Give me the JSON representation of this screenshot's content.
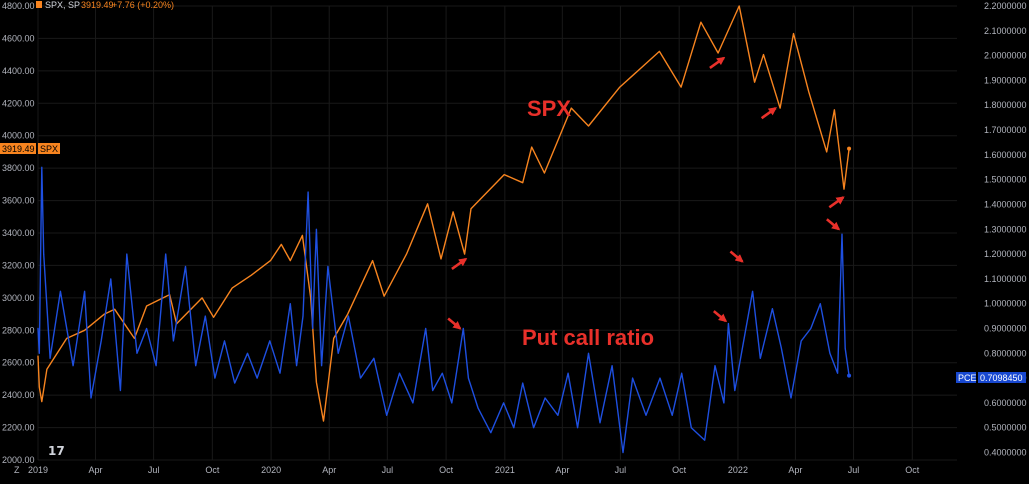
{
  "header": {
    "symbol": "SPX, SP",
    "price": "3919.49",
    "change": "+7.76 (+0.20%)"
  },
  "left_tag": {
    "price": "3919.49",
    "symbol": "SPX"
  },
  "right_tag": {
    "symbol": "PCE",
    "value": "0.7098450"
  },
  "corner_label": "Z",
  "logo_text": "17",
  "colors": {
    "background": "#000000",
    "spx": "#f7841f",
    "pcr": "#1e4fe0",
    "annotation": "#e8302a",
    "axis_text": "#b2b5be",
    "grid": "#191919",
    "tag_spx_bg": "#f7841f",
    "tag_pce_bg": "#1848d0"
  },
  "chart_data": {
    "type": "line",
    "x_axis": {
      "ticks": [
        "2019",
        "Apr",
        "Jul",
        "Oct",
        "2020",
        "Apr",
        "Jul",
        "Oct",
        "2021",
        "Apr",
        "Jul",
        "Oct",
        "2022",
        "Apr",
        "Jul",
        "Oct"
      ],
      "range": [
        "2019-01-01",
        "2022-12-10"
      ]
    },
    "y_axis_left": {
      "series": "SPX",
      "range": [
        2000,
        4800
      ],
      "ticks": [
        "2000.00",
        "2200.00",
        "2400.00",
        "2600.00",
        "2800.00",
        "3000.00",
        "3200.00",
        "3400.00",
        "3600.00",
        "3800.00",
        "4000.00",
        "4200.00",
        "4400.00",
        "4600.00",
        "4800.00"
      ]
    },
    "y_axis_right": {
      "series": "PCE",
      "range": [
        0.37,
        2.2
      ],
      "ticks": [
        "0.4000000",
        "0.5000000",
        "0.6000000",
        "0.7000000",
        "0.8000000",
        "0.9000000",
        "1.0000000",
        "1.1000000",
        "1.2000000",
        "1.3000000",
        "1.4000000",
        "1.5000000",
        "1.6000000",
        "1.7000000",
        "1.8000000",
        "1.9000000",
        "2.0000000",
        "2.1000000",
        "2.2000000"
      ]
    },
    "series": [
      {
        "name": "SPX",
        "axis": "left",
        "color": "#f7841f",
        "points": [
          [
            "2019-01-01",
            2640
          ],
          [
            "2019-01-03",
            2450
          ],
          [
            "2019-01-07",
            2360
          ],
          [
            "2019-01-15",
            2560
          ],
          [
            "2019-02-15",
            2750
          ],
          [
            "2019-03-15",
            2800
          ],
          [
            "2019-04-15",
            2900
          ],
          [
            "2019-05-01",
            2930
          ],
          [
            "2019-06-01",
            2750
          ],
          [
            "2019-06-20",
            2950
          ],
          [
            "2019-07-26",
            3020
          ],
          [
            "2019-08-06",
            2840
          ],
          [
            "2019-09-15",
            3000
          ],
          [
            "2019-10-03",
            2880
          ],
          [
            "2019-11-01",
            3060
          ],
          [
            "2019-12-01",
            3140
          ],
          [
            "2019-12-31",
            3230
          ],
          [
            "2020-01-17",
            3330
          ],
          [
            "2020-01-31",
            3230
          ],
          [
            "2020-02-19",
            3385
          ],
          [
            "2020-03-03",
            3000
          ],
          [
            "2020-03-12",
            2480
          ],
          [
            "2020-03-23",
            2240
          ],
          [
            "2020-04-08",
            2750
          ],
          [
            "2020-04-30",
            2900
          ],
          [
            "2020-06-08",
            3230
          ],
          [
            "2020-06-26",
            3010
          ],
          [
            "2020-07-31",
            3270
          ],
          [
            "2020-09-02",
            3580
          ],
          [
            "2020-09-23",
            3240
          ],
          [
            "2020-10-12",
            3530
          ],
          [
            "2020-10-30",
            3270
          ],
          [
            "2020-11-09",
            3550
          ],
          [
            "2020-12-31",
            3760
          ],
          [
            "2021-01-29",
            3710
          ],
          [
            "2021-02-12",
            3930
          ],
          [
            "2021-03-04",
            3770
          ],
          [
            "2021-04-15",
            4170
          ],
          [
            "2021-05-12",
            4060
          ],
          [
            "2021-06-30",
            4300
          ],
          [
            "2021-08-31",
            4520
          ],
          [
            "2021-10-04",
            4300
          ],
          [
            "2021-11-04",
            4700
          ],
          [
            "2021-12-01",
            4510
          ],
          [
            "2022-01-03",
            4800
          ],
          [
            "2022-01-27",
            4330
          ],
          [
            "2022-02-10",
            4500
          ],
          [
            "2022-03-08",
            4170
          ],
          [
            "2022-03-29",
            4630
          ],
          [
            "2022-04-22",
            4270
          ],
          [
            "2022-05-20",
            3900
          ],
          [
            "2022-06-01",
            4160
          ],
          [
            "2022-06-16",
            3670
          ],
          [
            "2022-06-24",
            3920
          ]
        ]
      },
      {
        "name": "PCE",
        "axis": "right",
        "color": "#1e4fe0",
        "points": [
          [
            "2019-01-01",
            0.9
          ],
          [
            "2019-01-03",
            0.8
          ],
          [
            "2019-01-07",
            1.55
          ],
          [
            "2019-01-10",
            1.2
          ],
          [
            "2019-01-20",
            0.78
          ],
          [
            "2019-02-05",
            1.05
          ],
          [
            "2019-02-25",
            0.75
          ],
          [
            "2019-03-15",
            1.05
          ],
          [
            "2019-03-25",
            0.62
          ],
          [
            "2019-04-10",
            0.85
          ],
          [
            "2019-04-25",
            1.1
          ],
          [
            "2019-05-10",
            0.65
          ],
          [
            "2019-05-20",
            1.2
          ],
          [
            "2019-06-05",
            0.8
          ],
          [
            "2019-06-20",
            0.9
          ],
          [
            "2019-07-05",
            0.75
          ],
          [
            "2019-07-20",
            1.2
          ],
          [
            "2019-08-01",
            0.85
          ],
          [
            "2019-08-20",
            1.15
          ],
          [
            "2019-09-05",
            0.75
          ],
          [
            "2019-09-20",
            0.95
          ],
          [
            "2019-10-05",
            0.7
          ],
          [
            "2019-10-20",
            0.85
          ],
          [
            "2019-11-05",
            0.68
          ],
          [
            "2019-11-25",
            0.8
          ],
          [
            "2019-12-10",
            0.7
          ],
          [
            "2019-12-30",
            0.85
          ],
          [
            "2020-01-15",
            0.72
          ],
          [
            "2020-01-31",
            1.0
          ],
          [
            "2020-02-10",
            0.75
          ],
          [
            "2020-02-20",
            0.95
          ],
          [
            "2020-02-28",
            1.45
          ],
          [
            "2020-03-06",
            0.9
          ],
          [
            "2020-03-12",
            1.3
          ],
          [
            "2020-03-20",
            0.75
          ],
          [
            "2020-03-30",
            1.15
          ],
          [
            "2020-04-15",
            0.8
          ],
          [
            "2020-05-01",
            0.95
          ],
          [
            "2020-05-20",
            0.7
          ],
          [
            "2020-06-10",
            0.78
          ],
          [
            "2020-06-30",
            0.55
          ],
          [
            "2020-07-20",
            0.72
          ],
          [
            "2020-08-10",
            0.6
          ],
          [
            "2020-08-30",
            0.9
          ],
          [
            "2020-09-10",
            0.65
          ],
          [
            "2020-09-25",
            0.72
          ],
          [
            "2020-10-10",
            0.6
          ],
          [
            "2020-10-28",
            0.9
          ],
          [
            "2020-11-05",
            0.7
          ],
          [
            "2020-11-20",
            0.58
          ],
          [
            "2020-12-10",
            0.48
          ],
          [
            "2020-12-30",
            0.6
          ],
          [
            "2021-01-15",
            0.5
          ],
          [
            "2021-01-29",
            0.68
          ],
          [
            "2021-02-15",
            0.5
          ],
          [
            "2021-03-05",
            0.62
          ],
          [
            "2021-03-25",
            0.55
          ],
          [
            "2021-04-10",
            0.72
          ],
          [
            "2021-04-25",
            0.5
          ],
          [
            "2021-05-12",
            0.8
          ],
          [
            "2021-05-30",
            0.52
          ],
          [
            "2021-06-18",
            0.75
          ],
          [
            "2021-07-05",
            0.4
          ],
          [
            "2021-07-20",
            0.7
          ],
          [
            "2021-08-10",
            0.55
          ],
          [
            "2021-09-01",
            0.7
          ],
          [
            "2021-09-20",
            0.55
          ],
          [
            "2021-10-05",
            0.72
          ],
          [
            "2021-10-20",
            0.5
          ],
          [
            "2021-11-10",
            0.45
          ],
          [
            "2021-11-26",
            0.75
          ],
          [
            "2021-12-10",
            0.6
          ],
          [
            "2021-12-17",
            0.92
          ],
          [
            "2021-12-27",
            0.65
          ],
          [
            "2022-01-10",
            0.85
          ],
          [
            "2022-01-24",
            1.05
          ],
          [
            "2022-02-05",
            0.78
          ],
          [
            "2022-02-24",
            0.98
          ],
          [
            "2022-03-10",
            0.82
          ],
          [
            "2022-03-25",
            0.62
          ],
          [
            "2022-04-10",
            0.85
          ],
          [
            "2022-04-25",
            0.9
          ],
          [
            "2022-05-10",
            1.0
          ],
          [
            "2022-05-25",
            0.8
          ],
          [
            "2022-06-06",
            0.72
          ],
          [
            "2022-06-13",
            1.28
          ],
          [
            "2022-06-18",
            0.82
          ],
          [
            "2022-06-24",
            0.71
          ]
        ]
      }
    ],
    "annotations": [
      {
        "text": "SPX",
        "color": "#e8302a"
      },
      {
        "text": "Put call ratio",
        "color": "#e8302a"
      }
    ],
    "arrows": [
      {
        "at": [
          "2020-11-01",
          3240
        ],
        "axis": "left",
        "direction": "up-right"
      },
      {
        "at": [
          "2021-12-10",
          4480
        ],
        "axis": "left",
        "direction": "up-right"
      },
      {
        "at": [
          "2022-03-01",
          4170
        ],
        "axis": "left",
        "direction": "up-right"
      },
      {
        "at": [
          "2022-06-15",
          3620
        ],
        "axis": "left",
        "direction": "up-right"
      },
      {
        "at": [
          "2020-10-23",
          0.9
        ],
        "axis": "right",
        "direction": "down-right"
      },
      {
        "at": [
          "2021-12-13",
          0.93
        ],
        "axis": "right",
        "direction": "down-right"
      },
      {
        "at": [
          "2022-01-08",
          1.17
        ],
        "axis": "right",
        "direction": "down-right"
      },
      {
        "at": [
          "2022-06-08",
          1.3
        ],
        "axis": "right",
        "direction": "down-right"
      }
    ]
  }
}
